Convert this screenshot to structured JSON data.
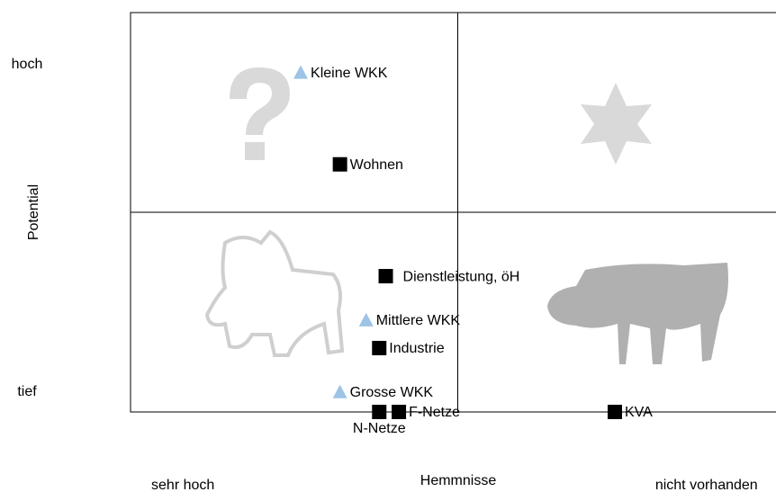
{
  "chart_data": {
    "type": "scatter",
    "xlabel": "Hemmnisse",
    "ylabel": "Potential",
    "xlim": [
      0,
      100
    ],
    "ylim": [
      0,
      100
    ],
    "xticks": [
      {
        "value": 8,
        "label": "sehr hoch"
      },
      {
        "value": 88,
        "label": "nicht vorhanden"
      }
    ],
    "yticks": [
      {
        "value": 5,
        "label": "tief"
      },
      {
        "value": 87,
        "label": "hoch"
      }
    ],
    "series": [
      {
        "marker": "triangle",
        "color": "#9dc3e6",
        "labels": [
          "Kleine WKK",
          "Mittlere WKK",
          "Grosse WKK"
        ],
        "x": [
          26,
          36,
          32
        ],
        "y": [
          85,
          23,
          5
        ]
      },
      {
        "marker": "square",
        "color": "#000000",
        "labels": [
          "Wohnen",
          "Dienstleistung, öH",
          "Industrie",
          "N-Netze",
          "F-Netze",
          "KVA"
        ],
        "x": [
          32,
          39,
          38,
          38,
          41,
          74
        ],
        "y": [
          62,
          34,
          16,
          0,
          0,
          0
        ]
      }
    ]
  }
}
